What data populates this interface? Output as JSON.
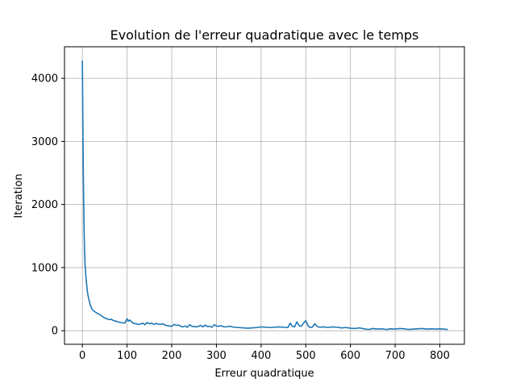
{
  "chart_data": {
    "type": "line",
    "title": "Evolution de l'erreur quadratique avec le temps",
    "xlabel": "Erreur quadratique",
    "ylabel": "Iteration",
    "xlim": [
      -40,
      855
    ],
    "ylim": [
      -215,
      4500
    ],
    "xticks": [
      0,
      100,
      200,
      300,
      400,
      500,
      600,
      700,
      800
    ],
    "yticks": [
      0,
      1000,
      2000,
      3000,
      4000
    ],
    "grid": true,
    "legend": "none",
    "line_color": "#1f77b4",
    "series": [
      {
        "x": [
          0,
          1,
          2,
          3,
          4,
          5,
          6,
          8,
          10,
          12,
          15,
          18,
          22,
          26,
          30,
          35,
          40,
          45,
          50,
          55,
          60,
          65,
          70,
          75,
          80,
          85,
          90,
          95,
          100,
          103,
          106,
          110,
          115,
          120,
          125,
          130,
          135,
          140,
          145,
          150,
          155,
          160,
          165,
          170,
          175,
          180,
          185,
          190,
          195,
          200,
          205,
          210,
          215,
          220,
          225,
          230,
          235,
          240,
          245,
          250,
          255,
          260,
          265,
          270,
          275,
          280,
          285,
          290,
          295,
          300,
          305,
          310,
          315,
          320,
          330,
          340,
          350,
          360,
          370,
          380,
          390,
          400,
          410,
          420,
          430,
          440,
          450,
          460,
          465,
          470,
          475,
          480,
          485,
          490,
          495,
          500,
          503,
          506,
          510,
          515,
          520,
          525,
          530,
          540,
          550,
          560,
          570,
          580,
          590,
          600,
          610,
          620,
          630,
          640,
          645,
          650,
          660,
          670,
          680,
          690,
          700,
          710,
          720,
          730,
          740,
          750,
          760,
          770,
          780,
          790,
          800,
          810,
          818
        ],
        "y": [
          4280,
          3400,
          2600,
          2000,
          1550,
          1250,
          1050,
          850,
          700,
          580,
          480,
          400,
          340,
          310,
          290,
          270,
          250,
          225,
          200,
          190,
          175,
          180,
          160,
          150,
          140,
          130,
          125,
          120,
          190,
          150,
          170,
          140,
          115,
          110,
          100,
          105,
          120,
          95,
          130,
          110,
          120,
          100,
          115,
          105,
          100,
          110,
          90,
          80,
          75,
          70,
          100,
          85,
          90,
          70,
          60,
          75,
          55,
          95,
          70,
          65,
          60,
          70,
          85,
          60,
          90,
          65,
          70,
          55,
          95,
          75,
          70,
          80,
          65,
          60,
          70,
          55,
          50,
          45,
          40,
          45,
          50,
          60,
          55,
          50,
          55,
          60,
          55,
          50,
          120,
          70,
          60,
          140,
          80,
          70,
          120,
          160,
          110,
          70,
          50,
          60,
          110,
          70,
          55,
          60,
          50,
          60,
          55,
          45,
          50,
          40,
          35,
          45,
          30,
          20,
          25,
          35,
          25,
          30,
          20,
          30,
          25,
          35,
          30,
          20,
          25,
          30,
          35,
          25,
          30,
          25,
          30,
          25,
          20
        ]
      }
    ]
  }
}
